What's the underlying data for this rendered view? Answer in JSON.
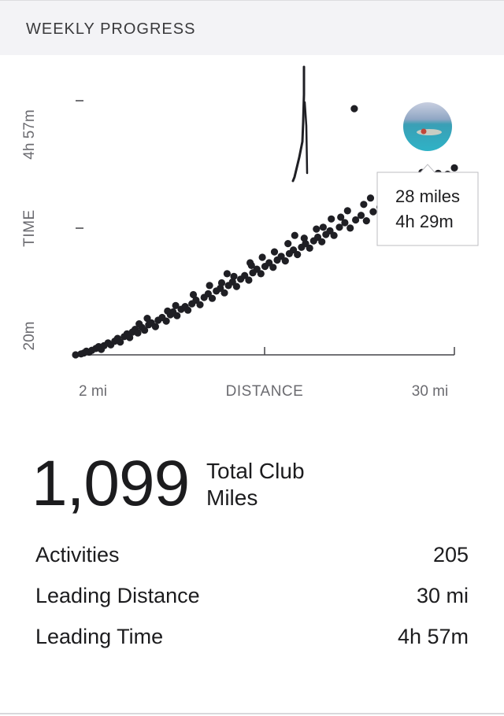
{
  "header": {
    "title": "WEEKLY PROGRESS"
  },
  "chart_data": {
    "type": "scatter",
    "title": "",
    "xlabel": "DISTANCE",
    "ylabel": "TIME",
    "x_tick_labels": [
      "2 mi",
      "30 mi"
    ],
    "y_tick_labels": [
      "20m",
      "4h 57m"
    ],
    "xlim": [
      2,
      30
    ],
    "ylim_minutes": [
      20,
      297
    ],
    "grid": false,
    "points_miles_minutes": [
      [
        2.0,
        20
      ],
      [
        2.4,
        21
      ],
      [
        2.6,
        22
      ],
      [
        2.8,
        24
      ],
      [
        3.0,
        23
      ],
      [
        3.2,
        25
      ],
      [
        3.5,
        27
      ],
      [
        3.7,
        29
      ],
      [
        3.9,
        26
      ],
      [
        4.1,
        30
      ],
      [
        4.4,
        33
      ],
      [
        4.6,
        31
      ],
      [
        4.9,
        35
      ],
      [
        5.1,
        38
      ],
      [
        5.3,
        34
      ],
      [
        5.6,
        40
      ],
      [
        5.8,
        43
      ],
      [
        6.0,
        39
      ],
      [
        6.2,
        45
      ],
      [
        6.4,
        48
      ],
      [
        6.6,
        44
      ],
      [
        6.9,
        50
      ],
      [
        7.1,
        47
      ],
      [
        7.4,
        53
      ],
      [
        7.6,
        55
      ],
      [
        7.9,
        51
      ],
      [
        8.1,
        58
      ],
      [
        8.4,
        61
      ],
      [
        8.7,
        57
      ],
      [
        9.0,
        64
      ],
      [
        9.2,
        67
      ],
      [
        9.5,
        63
      ],
      [
        9.8,
        70
      ],
      [
        10.1,
        73
      ],
      [
        10.3,
        69
      ],
      [
        10.6,
        76
      ],
      [
        10.9,
        80
      ],
      [
        11.2,
        75
      ],
      [
        11.5,
        83
      ],
      [
        11.8,
        87
      ],
      [
        12.1,
        82
      ],
      [
        12.4,
        90
      ],
      [
        12.7,
        93
      ],
      [
        13.0,
        88
      ],
      [
        13.3,
        96
      ],
      [
        13.6,
        100
      ],
      [
        13.9,
        95
      ],
      [
        14.2,
        103
      ],
      [
        14.5,
        107
      ],
      [
        14.8,
        102
      ],
      [
        15.1,
        110
      ],
      [
        15.4,
        114
      ],
      [
        15.7,
        109
      ],
      [
        16.0,
        117
      ],
      [
        16.3,
        121
      ],
      [
        16.6,
        116
      ],
      [
        16.9,
        124
      ],
      [
        17.2,
        128
      ],
      [
        17.5,
        123
      ],
      [
        17.8,
        131
      ],
      [
        18.1,
        135
      ],
      [
        18.4,
        130
      ],
      [
        18.7,
        138
      ],
      [
        19.0,
        142
      ],
      [
        19.3,
        137
      ],
      [
        19.6,
        145
      ],
      [
        19.9,
        149
      ],
      [
        20.2,
        144
      ],
      [
        20.5,
        152
      ],
      [
        20.8,
        156
      ],
      [
        21.1,
        151
      ],
      [
        21.5,
        160
      ],
      [
        21.9,
        165
      ],
      [
        22.3,
        159
      ],
      [
        22.7,
        168
      ],
      [
        23.1,
        173
      ],
      [
        23.5,
        167
      ],
      [
        24.0,
        177
      ],
      [
        24.5,
        182
      ],
      [
        25.0,
        176
      ],
      [
        25.5,
        187
      ],
      [
        26.0,
        192
      ],
      [
        26.6,
        186
      ],
      [
        27.2,
        197
      ],
      [
        27.8,
        203
      ],
      [
        28.0,
        269
      ],
      [
        22.6,
        290
      ],
      [
        29.0,
        211
      ],
      [
        29.5,
        218
      ],
      [
        30.0,
        225
      ],
      [
        15.0,
        118
      ],
      [
        13.7,
        106
      ],
      [
        18.9,
        148
      ],
      [
        21.6,
        171
      ],
      [
        24.7,
        189
      ],
      [
        26.2,
        201
      ],
      [
        9.4,
        74
      ],
      [
        7.3,
        60
      ],
      [
        11.9,
        96
      ],
      [
        16.7,
        133
      ],
      [
        20.3,
        160
      ],
      [
        23.3,
        185
      ],
      [
        25.9,
        208
      ],
      [
        27.4,
        214
      ],
      [
        12.8,
        99
      ],
      [
        14.9,
        121
      ],
      [
        17.7,
        142
      ],
      [
        19.8,
        158
      ],
      [
        22.1,
        178
      ],
      [
        24.9,
        198
      ],
      [
        26.8,
        210
      ],
      [
        28.8,
        219
      ],
      [
        6.7,
        54
      ],
      [
        8.8,
        68
      ],
      [
        10.7,
        86
      ],
      [
        13.2,
        109
      ],
      [
        15.8,
        127
      ],
      [
        18.2,
        151
      ],
      [
        20.9,
        169
      ],
      [
        23.8,
        192
      ],
      [
        25.3,
        200
      ],
      [
        27.6,
        220
      ]
    ],
    "callout": {
      "distance": "28 miles",
      "time": "4h 29m"
    }
  },
  "summary": {
    "total_value": "1,099",
    "total_label_line1": "Total Club",
    "total_label_line2": "Miles"
  },
  "stats": [
    {
      "label": "Activities",
      "value": "205"
    },
    {
      "label": "Leading Distance",
      "value": "30 mi"
    },
    {
      "label": "Leading Time",
      "value": "4h 57m"
    }
  ],
  "colors": {
    "dot": "#1f1f24",
    "axis": "#444448",
    "text_muted": "#6b6b70",
    "header_bg": "#f3f3f6"
  }
}
